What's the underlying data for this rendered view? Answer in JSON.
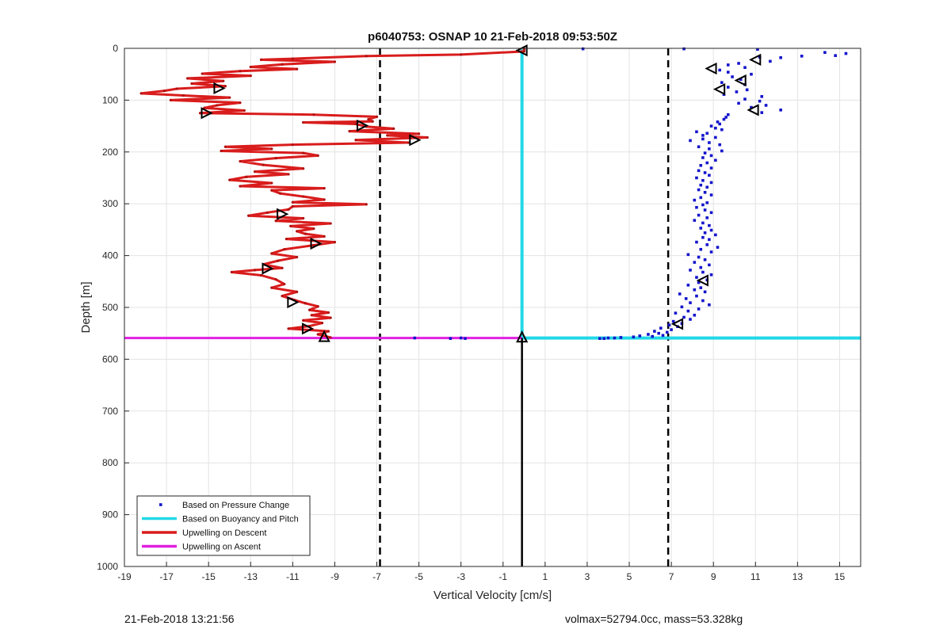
{
  "chart_data": {
    "type": "scatter",
    "title": "p6040753: OSNAP 10 21-Feb-2018 09:53:50Z",
    "xlabel": "Vertical Velocity [cm/s]",
    "ylabel": "Depth [m]",
    "xlim": [
      -19,
      16
    ],
    "ylim": [
      0,
      1000
    ],
    "y_reversed": true,
    "grid": true,
    "xticks": [
      -19,
      -17,
      -15,
      -13,
      -11,
      -9,
      -7,
      -5,
      -3,
      -1,
      1,
      3,
      5,
      7,
      9,
      11,
      13,
      15
    ],
    "yticks": [
      0,
      100,
      200,
      300,
      400,
      500,
      600,
      700,
      800,
      900,
      1000
    ],
    "legend_position": "bottom-left",
    "legend": [
      {
        "label": "Based on Pressure Change",
        "color": "#1414cc",
        "style": "dot"
      },
      {
        "label": "Based on Buoyancy and Pitch",
        "color": "#22d8e6",
        "style": "line"
      },
      {
        "label": "Upwelling on Descent",
        "color": "#d91c1c",
        "style": "line"
      },
      {
        "label": "Upwelling on Ascent",
        "color": "#e020e0",
        "style": "line"
      }
    ],
    "series": {
      "upwelling_descent": [
        [
          0,
          1
        ],
        [
          0,
          6
        ],
        [
          -3,
          12
        ],
        [
          -7.5,
          15
        ],
        [
          -11,
          20
        ],
        [
          -12.5,
          22
        ],
        [
          -9,
          26
        ],
        [
          -11.5,
          31
        ],
        [
          -13,
          36
        ],
        [
          -10.8,
          40
        ],
        [
          -13.5,
          44
        ],
        [
          -15.3,
          49
        ],
        [
          -13,
          53
        ],
        [
          -16,
          58
        ],
        [
          -14.3,
          63
        ],
        [
          -15.8,
          68
        ],
        [
          -14.2,
          73
        ],
        [
          -16.5,
          78
        ],
        [
          -17.1,
          82
        ],
        [
          -18.2,
          87
        ],
        [
          -16.2,
          91
        ],
        [
          -14,
          95
        ],
        [
          -16.8,
          100
        ],
        [
          -13.5,
          105
        ],
        [
          -14.6,
          110
        ],
        [
          -15.2,
          115
        ],
        [
          -13.3,
          120
        ],
        [
          -15.4,
          125
        ],
        [
          -10,
          128
        ],
        [
          -7,
          132
        ],
        [
          -7.4,
          137
        ],
        [
          -7.2,
          141
        ],
        [
          -10.5,
          143
        ],
        [
          -8,
          146
        ],
        [
          -7.5,
          151
        ],
        [
          -6.2,
          155
        ],
        [
          -8.3,
          160
        ],
        [
          -5,
          165
        ],
        [
          -6.5,
          168
        ],
        [
          -4.6,
          172
        ],
        [
          -8,
          177
        ],
        [
          -5.5,
          182
        ],
        [
          -11,
          186
        ],
        [
          -14.2,
          190
        ],
        [
          -12,
          194
        ],
        [
          -14.4,
          198
        ],
        [
          -10.5,
          202
        ],
        [
          -9.8,
          207
        ],
        [
          -11.8,
          212
        ],
        [
          -13.5,
          218
        ],
        [
          -12.4,
          225
        ],
        [
          -10.5,
          232
        ],
        [
          -12.8,
          238
        ],
        [
          -11.2,
          243
        ],
        [
          -13.2,
          248
        ],
        [
          -14,
          254
        ],
        [
          -12,
          260
        ],
        [
          -13.5,
          266
        ],
        [
          -9.5,
          270
        ],
        [
          -12,
          274
        ],
        [
          -11.6,
          280
        ],
        [
          -10.5,
          286
        ],
        [
          -9.5,
          292
        ],
        [
          -11,
          297
        ],
        [
          -7.5,
          301
        ],
        [
          -11,
          305
        ],
        [
          -11.2,
          311
        ],
        [
          -12.2,
          317
        ],
        [
          -13.1,
          323
        ],
        [
          -10.5,
          328
        ],
        [
          -11.8,
          333
        ],
        [
          -9.2,
          338
        ],
        [
          -11.1,
          343
        ],
        [
          -10,
          348
        ],
        [
          -10.8,
          353
        ],
        [
          -10.4,
          358
        ],
        [
          -9.5,
          363
        ],
        [
          -11.3,
          368
        ],
        [
          -9,
          374
        ],
        [
          -10,
          380
        ],
        [
          -11.4,
          388
        ],
        [
          -12,
          396
        ],
        [
          -10.8,
          403
        ],
        [
          -11.7,
          410
        ],
        [
          -12.4,
          417
        ],
        [
          -11.5,
          424
        ],
        [
          -12.8,
          428
        ],
        [
          -13.9,
          432
        ],
        [
          -12.5,
          438
        ],
        [
          -11.8,
          446
        ],
        [
          -11.4,
          455
        ],
        [
          -12,
          462
        ],
        [
          -10.8,
          470
        ],
        [
          -11.5,
          478
        ],
        [
          -10.9,
          486
        ],
        [
          -10.4,
          492
        ],
        [
          -9.8,
          498
        ],
        [
          -10.2,
          505
        ],
        [
          -9.3,
          510
        ],
        [
          -10.1,
          515
        ],
        [
          -9.2,
          520
        ],
        [
          -10.5,
          525
        ],
        [
          -9.6,
          530
        ],
        [
          -10.2,
          536
        ],
        [
          -11.2,
          541
        ],
        [
          -9.3,
          546
        ],
        [
          -9.8,
          552
        ],
        [
          -9.2,
          558
        ]
      ],
      "upwelling_descent_markers": [
        [
          -0.1,
          4
        ],
        [
          -14.5,
          77
        ],
        [
          -15.1,
          125
        ],
        [
          -7.7,
          149
        ],
        [
          -5.2,
          177
        ],
        [
          -11.5,
          320
        ],
        [
          -9.9,
          377
        ],
        [
          -12.2,
          425
        ],
        [
          -11,
          490
        ],
        [
          -10.3,
          541
        ],
        [
          -9.5,
          556
        ]
      ],
      "upwelling_ascent": [
        [
          -19,
          559
        ],
        [
          -0.1,
          559
        ]
      ],
      "ascent_marker": [
        [
          -0.1,
          557
        ]
      ],
      "buoyancy_pitch_vertical": [
        [
          -0.1,
          2
        ],
        [
          -0.1,
          559
        ]
      ],
      "buoyancy_pitch_horizontal": [
        [
          -0.1,
          559
        ],
        [
          16,
          559
        ]
      ],
      "vertical_black": [
        [
          -0.1,
          559
        ],
        [
          -0.1,
          1000
        ]
      ],
      "reference_lines_x": [
        -6.85,
        6.85
      ],
      "pressure_change": [
        [
          2.8,
          1
        ],
        [
          7.6,
          1
        ],
        [
          11.1,
          2
        ],
        [
          13.2,
          15
        ],
        [
          14.3,
          8
        ],
        [
          14.8,
          14
        ],
        [
          15.3,
          10
        ],
        [
          11.2,
          17
        ],
        [
          12.2,
          18
        ],
        [
          11.7,
          25
        ],
        [
          10.2,
          29
        ],
        [
          9.7,
          32
        ],
        [
          10.5,
          37
        ],
        [
          9.3,
          42
        ],
        [
          9.7,
          46
        ],
        [
          10.8,
          50
        ],
        [
          9.9,
          55
        ],
        [
          10.3,
          60
        ],
        [
          9.4,
          66
        ],
        [
          10.5,
          70
        ],
        [
          9.7,
          75
        ],
        [
          10.6,
          80
        ],
        [
          10.1,
          84
        ],
        [
          9.5,
          89
        ],
        [
          11.3,
          93
        ],
        [
          10.5,
          98
        ],
        [
          11.2,
          102
        ],
        [
          10.2,
          106
        ],
        [
          11.5,
          110
        ],
        [
          10.8,
          114
        ],
        [
          12.2,
          119
        ],
        [
          11.3,
          124
        ],
        [
          9.7,
          128
        ],
        [
          9.6,
          133
        ],
        [
          9.5,
          137
        ],
        [
          9.2,
          142
        ],
        [
          9.3,
          146
        ],
        [
          8.9,
          150
        ],
        [
          9.1,
          154
        ],
        [
          9.4,
          157
        ],
        [
          8.2,
          161
        ],
        [
          8.7,
          164
        ],
        [
          8.5,
          168
        ],
        [
          9.1,
          172
        ],
        [
          8.5,
          175
        ],
        [
          7.9,
          178
        ],
        [
          8.8,
          182
        ],
        [
          9.3,
          186
        ],
        [
          8.3,
          190
        ],
        [
          8.8,
          194
        ],
        [
          9.4,
          198
        ],
        [
          8.6,
          202
        ],
        [
          8.9,
          207
        ],
        [
          8.5,
          211
        ],
        [
          9.1,
          216
        ],
        [
          8.7,
          221
        ],
        [
          8.4,
          226
        ],
        [
          8.9,
          231
        ],
        [
          8.3,
          236
        ],
        [
          8.6,
          240
        ],
        [
          8.8,
          245
        ],
        [
          8.2,
          250
        ],
        [
          8.5,
          255
        ],
        [
          8.9,
          259
        ],
        [
          8.4,
          264
        ],
        [
          8.7,
          268
        ],
        [
          8.3,
          273
        ],
        [
          8.6,
          278
        ],
        [
          8.9,
          283
        ],
        [
          8.4,
          288
        ],
        [
          8.1,
          293
        ],
        [
          8.7,
          298
        ],
        [
          8.5,
          302
        ],
        [
          8.2,
          307
        ],
        [
          8.6,
          312
        ],
        [
          8.9,
          317
        ],
        [
          8.3,
          322
        ],
        [
          8.7,
          327
        ],
        [
          8.1,
          332
        ],
        [
          8.5,
          337
        ],
        [
          8.8,
          342
        ],
        [
          8.4,
          347
        ],
        [
          8.9,
          351
        ],
        [
          8.6,
          356
        ],
        [
          9.1,
          360
        ],
        [
          8.5,
          365
        ],
        [
          8.8,
          369
        ],
        [
          8.2,
          374
        ],
        [
          8.7,
          379
        ],
        [
          9.2,
          384
        ],
        [
          8.4,
          388
        ],
        [
          8.9,
          393
        ],
        [
          7.8,
          398
        ],
        [
          8.3,
          403
        ],
        [
          8.6,
          408
        ],
        [
          8.1,
          413
        ],
        [
          8.8,
          418
        ],
        [
          8.4,
          423
        ],
        [
          7.9,
          428
        ],
        [
          8.5,
          432
        ],
        [
          8.9,
          437
        ],
        [
          8.2,
          442
        ],
        [
          8.7,
          447
        ],
        [
          8.3,
          452
        ],
        [
          7.8,
          457
        ],
        [
          8.4,
          462
        ],
        [
          8.1,
          466
        ],
        [
          8.6,
          470
        ],
        [
          7.4,
          474
        ],
        [
          8.2,
          478
        ],
        [
          7.7,
          483
        ],
        [
          8.5,
          487
        ],
        [
          7.9,
          491
        ],
        [
          8.8,
          495
        ],
        [
          7.5,
          499
        ],
        [
          8.3,
          503
        ],
        [
          7.8,
          507
        ],
        [
          7.2,
          511
        ],
        [
          8.1,
          515
        ],
        [
          7.6,
          519
        ],
        [
          7.9,
          523
        ],
        [
          7.1,
          527
        ],
        [
          7.5,
          531
        ],
        [
          6.9,
          534
        ],
        [
          7.3,
          537
        ],
        [
          6.5,
          540
        ],
        [
          7.0,
          543
        ],
        [
          6.2,
          546
        ],
        [
          6.8,
          548
        ],
        [
          6.4,
          550
        ],
        [
          5.9,
          552
        ],
        [
          6.6,
          554
        ],
        [
          5.5,
          555
        ],
        [
          6.1,
          556
        ],
        [
          5.2,
          557
        ],
        [
          4.6,
          558
        ],
        [
          4.0,
          559
        ],
        [
          3.8,
          560
        ],
        [
          4.3,
          559
        ],
        [
          3.6,
          560
        ],
        [
          -3,
          559
        ],
        [
          -2.8,
          560
        ],
        [
          -5.2,
          559
        ],
        [
          -3.5,
          560
        ]
      ],
      "pressure_change_markers": [
        [
          11,
          22
        ],
        [
          8.9,
          39
        ],
        [
          10.3,
          62
        ],
        [
          9.3,
          79
        ],
        [
          10.9,
          119
        ],
        [
          8.5,
          448
        ],
        [
          7.3,
          532
        ]
      ]
    }
  },
  "footer": {
    "left": "21-Feb-2018 13:21:56",
    "right": "volmax=52794.0cc, mass=53.328kg"
  }
}
